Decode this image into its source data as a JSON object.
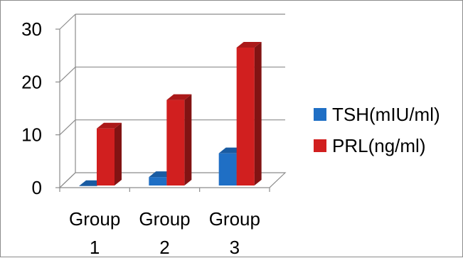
{
  "chart_data": {
    "type": "bar",
    "style": "3d-clustered-column",
    "categories": [
      [
        "Group",
        "1"
      ],
      [
        "Group",
        "2"
      ],
      [
        "Group",
        "3"
      ]
    ],
    "series": [
      {
        "name": "TSH(mIU/ml)",
        "color": "#1f6fc5",
        "values": [
          0.3,
          2.0,
          6.5
        ]
      },
      {
        "name": "PRL(ng/ml)",
        "color": "#d11f1f",
        "values": [
          11.2,
          16.6,
          26.5
        ]
      }
    ],
    "ylim": [
      0,
      30
    ],
    "yticks": [
      0,
      10,
      20,
      30
    ],
    "grid": true,
    "legend_position": "right"
  }
}
